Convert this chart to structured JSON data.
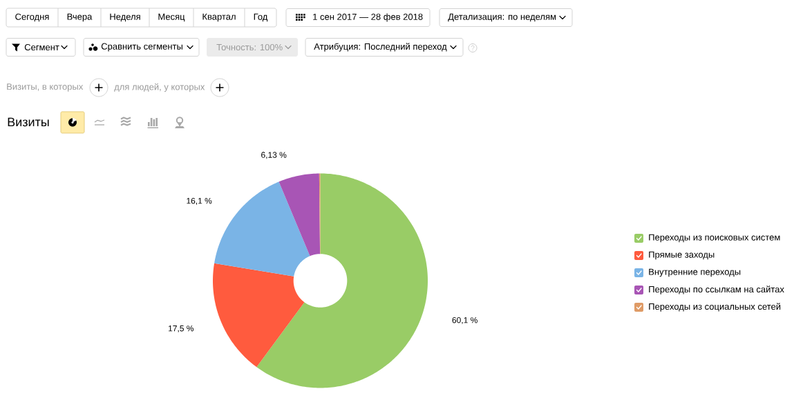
{
  "chart_data": {
    "type": "donut",
    "title": "Визиты",
    "categories": [
      "Переходы из поисковых систем",
      "Прямые заходы",
      "Внутренние переходы",
      "Переходы по ссылкам на сайтах",
      "Переходы из социальных сетей"
    ],
    "values": [
      60.1,
      17.5,
      16.1,
      6.13,
      0.17
    ],
    "colors": [
      "#99cc66",
      "#ff5b3e",
      "#7ab4e6",
      "#a855b5",
      "#df9b66"
    ],
    "value_labels": [
      "60,1 %",
      "17,5 %",
      "16,1 %",
      "6,13 %",
      null
    ],
    "legend": "right",
    "annotations": [
      "Сегодня",
      "Вчера",
      "Неделя",
      "Месяц",
      "Квартал",
      "Год",
      "1 сен 2017 — 28 фев 2018",
      "Детализация: по неделям",
      "Сегмент",
      "Сравнить сегменты",
      "Точность: 100%",
      "Атрибуция: Последний переход",
      "Визиты, в которых",
      "для людей, у которых"
    ]
  }
}
